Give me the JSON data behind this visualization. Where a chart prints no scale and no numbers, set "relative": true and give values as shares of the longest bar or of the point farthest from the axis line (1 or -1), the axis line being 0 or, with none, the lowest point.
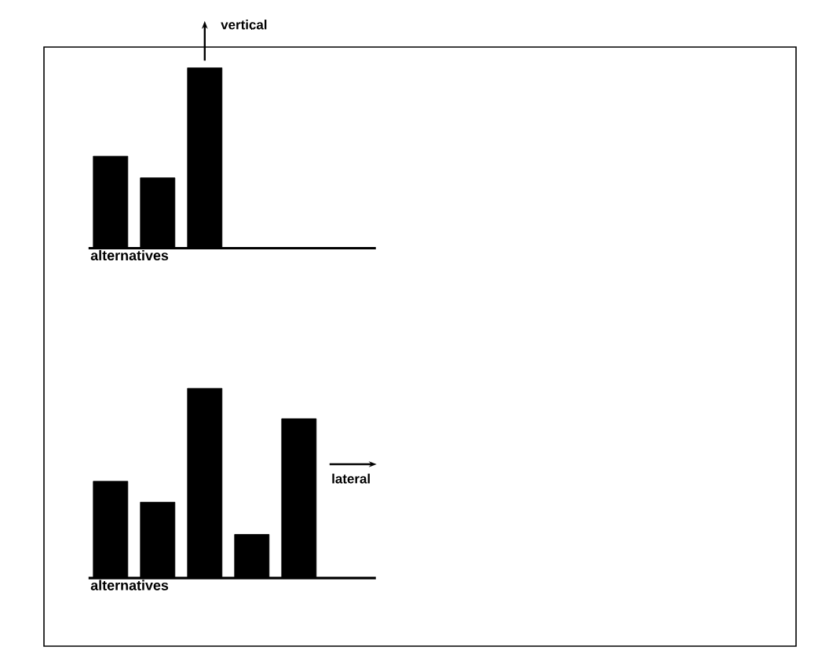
{
  "chart_data": [
    {
      "type": "bar",
      "categories": [
        null,
        null,
        null
      ],
      "values": [
        0.51,
        0.39,
        1
      ],
      "relative": true,
      "color": "#000000",
      "xlabel": "alternatives",
      "annotations": [
        "vertical"
      ]
    },
    {
      "type": "bar",
      "categories": [
        null,
        null,
        null,
        null,
        null
      ],
      "values": [
        0.51,
        0.4,
        1,
        0.23,
        0.84
      ],
      "relative": true,
      "color": "#000000",
      "xlabel": "alternatives",
      "annotations": [
        "lateral"
      ]
    }
  ]
}
